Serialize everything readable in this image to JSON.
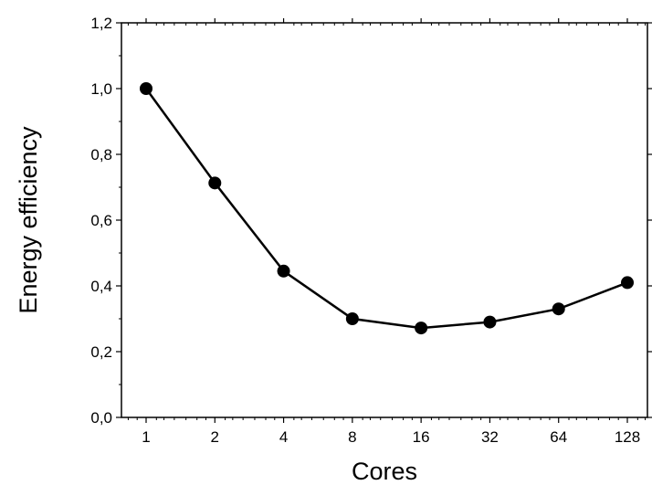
{
  "chart_data": {
    "type": "line",
    "title": "",
    "xlabel": "Cores",
    "ylabel": "Energy efficiency",
    "x_scale": "log2",
    "x": [
      1,
      2,
      4,
      8,
      16,
      32,
      64,
      128
    ],
    "x_tick_labels": [
      "1",
      "2",
      "4",
      "8",
      "16",
      "32",
      "64",
      "128"
    ],
    "y_tick_labels": [
      "0,0",
      "0,2",
      "0,4",
      "0,6",
      "0,8",
      "1,0",
      "1,2"
    ],
    "ylim": [
      0,
      1.2
    ],
    "grid": false,
    "legend": "none",
    "series": [
      {
        "values": [
          1.0,
          0.713,
          0.445,
          0.3,
          0.272,
          0.29,
          0.33,
          0.41
        ],
        "marker": "circle",
        "color": "#000000"
      }
    ]
  }
}
